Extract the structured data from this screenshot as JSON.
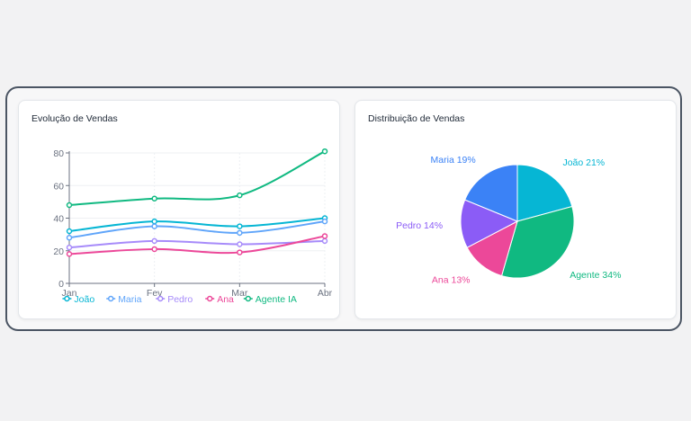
{
  "line_card": {
    "title": "Evolução de Vendas"
  },
  "pie_card": {
    "title": "Distribuição de Vendas"
  },
  "chart_data": [
    {
      "type": "line",
      "title": "Evolução de Vendas",
      "categories": [
        "Jan",
        "Fev",
        "Mar",
        "Abr"
      ],
      "yticks": [
        0,
        20,
        40,
        60,
        80
      ],
      "ylim": [
        0,
        80
      ],
      "grid": true,
      "legend": "bottom",
      "series": [
        {
          "name": "João",
          "values": [
            32,
            38,
            35,
            40
          ],
          "color": "#06b6d4"
        },
        {
          "name": "Maria",
          "values": [
            28,
            35,
            31,
            38
          ],
          "color": "#60a5fa"
        },
        {
          "name": "Pedro",
          "values": [
            22,
            26,
            24,
            26
          ],
          "color": "#a78bfa"
        },
        {
          "name": "Ana",
          "values": [
            18,
            21,
            19,
            29
          ],
          "color": "#ec4899"
        },
        {
          "name": "Agente IA",
          "values": [
            48,
            52,
            54,
            81
          ],
          "color": "#10b981"
        }
      ]
    },
    {
      "type": "pie",
      "title": "Distribuição de Vendas",
      "slices": [
        {
          "label": "João 21%",
          "value": 21,
          "color": "#06b6d4"
        },
        {
          "label": "Agente 34%",
          "value": 34,
          "color": "#10b981"
        },
        {
          "label": "Ana 13%",
          "value": 13,
          "color": "#ec4899"
        },
        {
          "label": "Pedro 14%",
          "value": 14,
          "color": "#8b5cf6"
        },
        {
          "label": "Maria 19%",
          "value": 19,
          "color": "#3b82f6"
        }
      ]
    }
  ]
}
